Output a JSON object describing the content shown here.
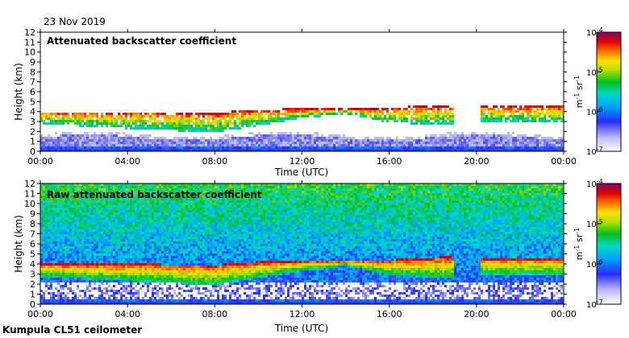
{
  "date_label": "23 Nov 2019",
  "footer_label": "Kumpula CL51 ceilometer",
  "colorbar": {
    "label_base": "m",
    "label_exp1": "-1",
    "label_mid": " sr",
    "label_exp2": "-1",
    "ticks": [
      {
        "base": "10",
        "exp": "-4",
        "value": 0.0001
      },
      {
        "base": "10",
        "exp": "-5",
        "value": 1e-05
      },
      {
        "base": "10",
        "exp": "-6",
        "value": 1e-06
      },
      {
        "base": "10",
        "exp": "-7",
        "value": 1e-07
      }
    ]
  },
  "chart_data": [
    {
      "type": "heatmap",
      "title": "Attenuated backscatter coefficient",
      "xlabel": "Time (UTC)",
      "ylabel": "Height (km)",
      "xticks": [
        "00:00",
        "04:00",
        "08:00",
        "12:00",
        "16:00",
        "20:00",
        "00:00"
      ],
      "xlim_hours": [
        0,
        24
      ],
      "ylim": [
        0,
        12
      ],
      "yticks": [
        0,
        1,
        2,
        3,
        4,
        5,
        6,
        7,
        8,
        9,
        10,
        11,
        12
      ],
      "color_scale": "log",
      "clim": [
        1e-07,
        0.0001
      ],
      "cloud_layer": [
        {
          "t": 0.5,
          "base": 2.7,
          "top": 4.0
        },
        {
          "t": 4.0,
          "base": 2.3,
          "top": 4.0
        },
        {
          "t": 8.0,
          "base": 1.9,
          "top": 3.9
        },
        {
          "t": 10.0,
          "base": 2.6,
          "top": 4.2
        },
        {
          "t": 12.0,
          "base": 3.3,
          "top": 4.3
        },
        {
          "t": 14.0,
          "base": 3.8,
          "top": 4.3
        },
        {
          "t": 16.0,
          "base": 2.9,
          "top": 4.4
        },
        {
          "t": 18.5,
          "base": 2.6,
          "top": 4.7
        },
        {
          "t": 20.3,
          "base": 3.0,
          "top": 4.6
        },
        {
          "t": 24.0,
          "base": 2.9,
          "top": 4.6
        }
      ]
    },
    {
      "type": "heatmap",
      "title": "Raw attenuated backscatter coefficient",
      "xlabel": "Time (UTC)",
      "ylabel": "Height (km)",
      "xticks": [
        "00:00",
        "04:00",
        "08:00",
        "12:00",
        "16:00",
        "20:00",
        "00:00"
      ],
      "xlim_hours": [
        0,
        24
      ],
      "ylim": [
        0,
        12
      ],
      "yticks": [
        0,
        1,
        2,
        3,
        4,
        5,
        6,
        7,
        8,
        9,
        10,
        11,
        12
      ],
      "color_scale": "log",
      "clim": [
        1e-07,
        0.0001
      ]
    }
  ]
}
